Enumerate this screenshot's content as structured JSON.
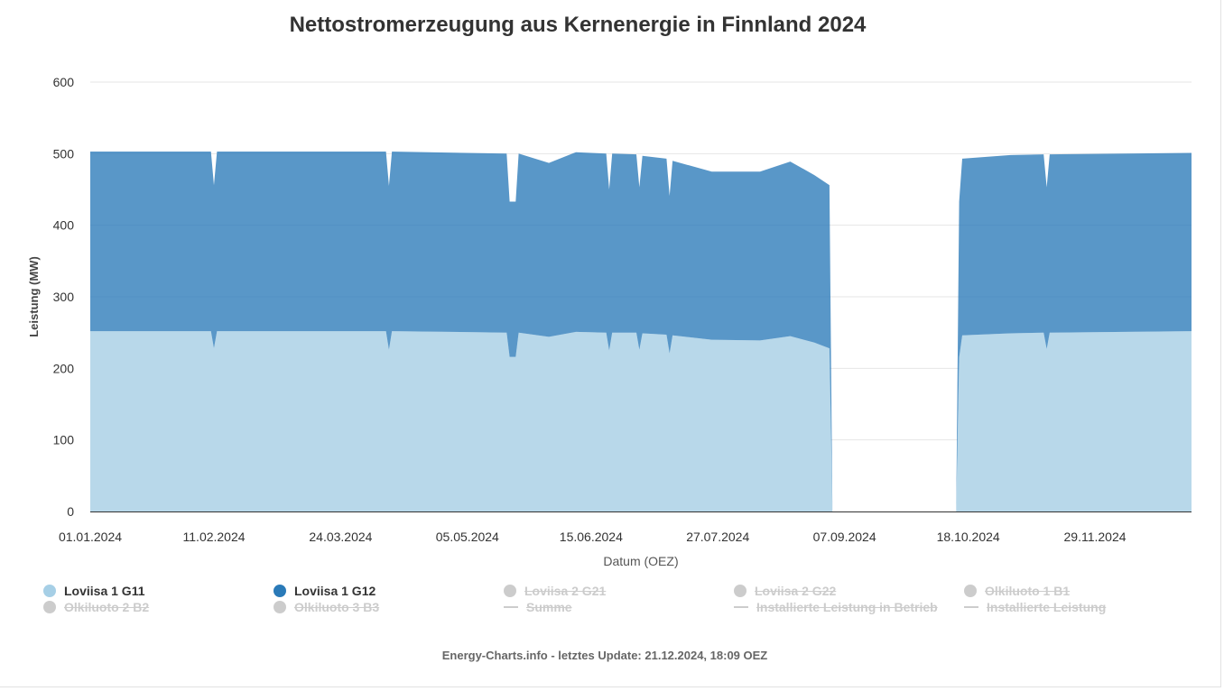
{
  "title": "Nettostromerzeugung aus Kernenergie in Finnland 2024",
  "footer": "Energy-Charts.info - letztes Update: 21.12.2024, 18:09 OEZ",
  "chart_data": {
    "type": "area",
    "stacked": true,
    "xlabel": "Datum (OEZ)",
    "ylabel": "Leistung (MW)",
    "ylim": [
      0,
      600
    ],
    "yticks": [
      0,
      100,
      200,
      300,
      400,
      500,
      600
    ],
    "xlim": [
      "2024-01-01",
      "2024-12-31"
    ],
    "xtick_labels": [
      "01.01.2024",
      "11.02.2024",
      "24.03.2024",
      "05.05.2024",
      "15.06.2024",
      "27.07.2024",
      "07.09.2024",
      "18.10.2024",
      "29.11.2024"
    ],
    "grid": true,
    "legend_position": "bottom",
    "series": [
      {
        "name": "Loviisa 1 G11",
        "color": "#b8d8ea",
        "visible": true,
        "points": [
          [
            "2024-01-01",
            252
          ],
          [
            "2024-02-10",
            252
          ],
          [
            "2024-02-11",
            228
          ],
          [
            "2024-02-12",
            252
          ],
          [
            "2024-04-08",
            252
          ],
          [
            "2024-04-09",
            226
          ],
          [
            "2024-04-10",
            252
          ],
          [
            "2024-05-18",
            250
          ],
          [
            "2024-05-19",
            216
          ],
          [
            "2024-05-21",
            216
          ],
          [
            "2024-05-22",
            250
          ],
          [
            "2024-06-01",
            244
          ],
          [
            "2024-06-10",
            251
          ],
          [
            "2024-06-20",
            250
          ],
          [
            "2024-06-21",
            225
          ],
          [
            "2024-06-22",
            250
          ],
          [
            "2024-06-30",
            250
          ],
          [
            "2024-07-01",
            226
          ],
          [
            "2024-07-02",
            249
          ],
          [
            "2024-07-10",
            247
          ],
          [
            "2024-07-11",
            221
          ],
          [
            "2024-07-12",
            246
          ],
          [
            "2024-07-25",
            240
          ],
          [
            "2024-08-10",
            239
          ],
          [
            "2024-08-20",
            245
          ],
          [
            "2024-08-28",
            236
          ],
          [
            "2024-09-02",
            228
          ],
          [
            "2024-09-03",
            0
          ],
          [
            "2024-10-14",
            0
          ],
          [
            "2024-10-15",
            215
          ],
          [
            "2024-10-16",
            246
          ],
          [
            "2024-11-01",
            249
          ],
          [
            "2024-11-12",
            250
          ],
          [
            "2024-11-13",
            227
          ],
          [
            "2024-11-14",
            250
          ],
          [
            "2024-12-31",
            252
          ]
        ]
      },
      {
        "name": "Loviisa 1 G12",
        "color": "#2a7ab8",
        "visible": true,
        "points": [
          [
            "2024-01-01",
            251
          ],
          [
            "2024-02-10",
            251
          ],
          [
            "2024-02-11",
            228
          ],
          [
            "2024-02-12",
            251
          ],
          [
            "2024-04-08",
            251
          ],
          [
            "2024-04-09",
            229
          ],
          [
            "2024-04-10",
            251
          ],
          [
            "2024-05-18",
            250
          ],
          [
            "2024-05-19",
            217
          ],
          [
            "2024-05-21",
            217
          ],
          [
            "2024-05-22",
            250
          ],
          [
            "2024-06-01",
            243
          ],
          [
            "2024-06-10",
            251
          ],
          [
            "2024-06-20",
            250
          ],
          [
            "2024-06-21",
            225
          ],
          [
            "2024-06-22",
            250
          ],
          [
            "2024-06-30",
            249
          ],
          [
            "2024-07-01",
            227
          ],
          [
            "2024-07-02",
            248
          ],
          [
            "2024-07-10",
            246
          ],
          [
            "2024-07-11",
            220
          ],
          [
            "2024-07-12",
            244
          ],
          [
            "2024-07-25",
            235
          ],
          [
            "2024-08-10",
            236
          ],
          [
            "2024-08-20",
            244
          ],
          [
            "2024-08-28",
            234
          ],
          [
            "2024-09-02",
            228
          ],
          [
            "2024-09-03",
            0
          ],
          [
            "2024-10-14",
            0
          ],
          [
            "2024-10-15",
            218
          ],
          [
            "2024-10-16",
            247
          ],
          [
            "2024-11-01",
            249
          ],
          [
            "2024-11-12",
            249
          ],
          [
            "2024-11-13",
            226
          ],
          [
            "2024-11-14",
            249
          ],
          [
            "2024-12-31",
            249
          ]
        ]
      }
    ],
    "legend": [
      {
        "name": "Loviisa 1 G11",
        "color": "#a6cfe6",
        "visible": true,
        "symbol": "circle"
      },
      {
        "name": "Loviisa 1 G12",
        "color": "#2a7ab8",
        "visible": true,
        "symbol": "circle"
      },
      {
        "name": "Loviisa 2 G21",
        "color": "#cccccc",
        "visible": false,
        "symbol": "circle"
      },
      {
        "name": "Loviisa 2 G22",
        "color": "#cccccc",
        "visible": false,
        "symbol": "circle"
      },
      {
        "name": "Olkiluoto 1 B1",
        "color": "#cccccc",
        "visible": false,
        "symbol": "circle"
      },
      {
        "name": "Olkiluoto 2 B2",
        "color": "#cccccc",
        "visible": false,
        "symbol": "circle"
      },
      {
        "name": "Olkiluoto 3 B3",
        "color": "#cccccc",
        "visible": false,
        "symbol": "circle"
      },
      {
        "name": "Summe",
        "color": "#cccccc",
        "visible": false,
        "symbol": "line"
      },
      {
        "name": "Installierte Leistung in Betrieb",
        "color": "#cccccc",
        "visible": false,
        "symbol": "line"
      },
      {
        "name": "Installierte Leistung",
        "color": "#cccccc",
        "visible": false,
        "symbol": "line"
      }
    ]
  }
}
